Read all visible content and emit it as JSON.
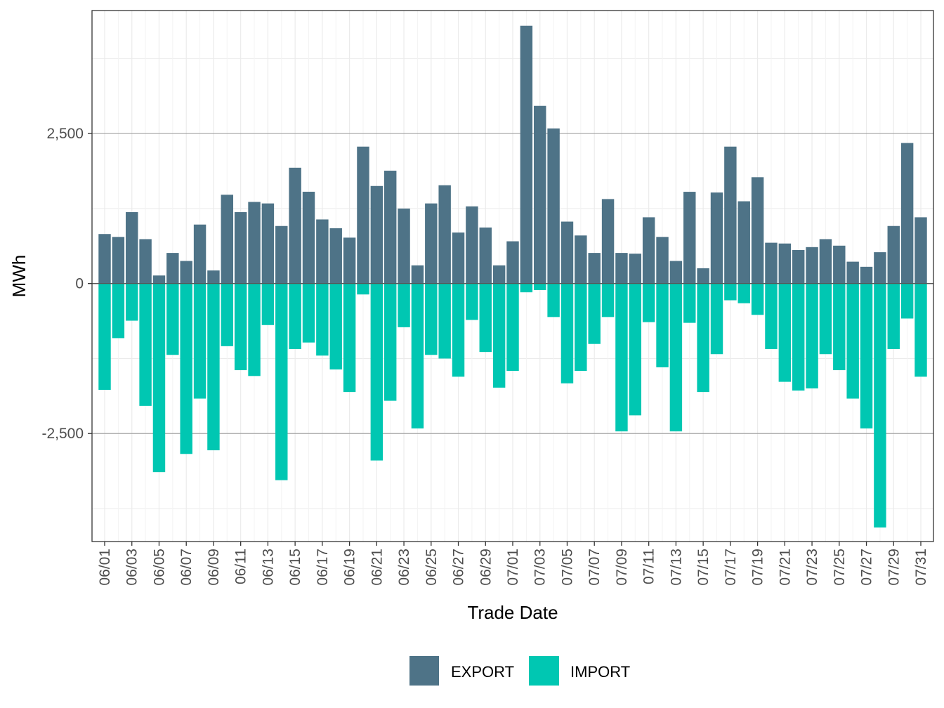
{
  "chart_data": {
    "type": "bar",
    "stacked": "diverging",
    "title": "",
    "xlabel": "Trade Date",
    "ylabel": "MWh",
    "ylim": [
      -4300,
      4550
    ],
    "yticks": [
      -2500,
      0,
      2500
    ],
    "ytick_labels": [
      "-2,500",
      "0",
      "2,500"
    ],
    "grid": true,
    "legend_position": "bottom",
    "categories": [
      "06/01",
      "06/02",
      "06/03",
      "06/04",
      "06/05",
      "06/06",
      "06/07",
      "06/08",
      "06/09",
      "06/10",
      "06/11",
      "06/12",
      "06/13",
      "06/14",
      "06/15",
      "06/16",
      "06/17",
      "06/18",
      "06/19",
      "06/20",
      "06/21",
      "06/22",
      "06/23",
      "06/24",
      "06/25",
      "06/26",
      "06/27",
      "06/28",
      "06/29",
      "06/30",
      "07/01",
      "07/02",
      "07/03",
      "07/04",
      "07/05",
      "07/06",
      "07/07",
      "07/08",
      "07/09",
      "07/10",
      "07/11",
      "07/12",
      "07/13",
      "07/14",
      "07/15",
      "07/16",
      "07/17",
      "07/18",
      "07/19",
      "07/20",
      "07/21",
      "07/22",
      "07/23",
      "07/24",
      "07/25",
      "07/26",
      "07/27",
      "07/28",
      "07/29",
      "07/30",
      "07/31"
    ],
    "xtick_labels": [
      "06/01",
      "06/03",
      "06/05",
      "06/07",
      "06/09",
      "06/11",
      "06/13",
      "06/15",
      "06/17",
      "06/19",
      "06/21",
      "06/23",
      "06/25",
      "06/27",
      "06/29",
      "07/01",
      "07/03",
      "07/05",
      "07/07",
      "07/09",
      "07/11",
      "07/13",
      "07/15",
      "07/17",
      "07/19",
      "07/21",
      "07/23",
      "07/25",
      "07/27",
      "07/29",
      "07/31"
    ],
    "series": [
      {
        "name": "EXPORT",
        "color": "#4e7387",
        "values": [
          825,
          777,
          1190,
          740,
          134,
          510,
          376,
          983,
          218,
          1480,
          1190,
          1360,
          1335,
          959,
          1930,
          1530,
          1068,
          922,
          765,
          2282,
          1626,
          1881,
          1250,
          303,
          1335,
          1638,
          850,
          1286,
          934,
          303,
          704,
          4296,
          2961,
          2585,
          1032,
          801,
          510,
          1408,
          510,
          498,
          1104,
          777,
          376,
          1529,
          255,
          1517,
          2282,
          1371,
          1772,
          680,
          667,
          558,
          607,
          740,
          631,
          364,
          279,
          522,
          959,
          2342,
          1104
        ]
      },
      {
        "name": "IMPORT",
        "color": "#00c7b2",
        "values": [
          -1772,
          -910,
          -619,
          -2039,
          -3143,
          -1189,
          -2840,
          -1918,
          -2779,
          -1044,
          -1444,
          -1541,
          -692,
          -3277,
          -1092,
          -983,
          -1201,
          -1432,
          -1808,
          -182,
          -2949,
          -1954,
          -728,
          -2415,
          -1189,
          -1250,
          -1553,
          -607,
          -1141,
          -1735,
          -1456,
          -146,
          -109,
          -558,
          -1663,
          -1456,
          -1007,
          -558,
          -2464,
          -2197,
          -643,
          -1396,
          -2464,
          -655,
          -1808,
          -1177,
          -279,
          -328,
          -522,
          -1092,
          -1638,
          -1784,
          -1748,
          -1177,
          -1444,
          -1918,
          -2415,
          -4066,
          -1092,
          -583,
          -1553
        ]
      }
    ]
  }
}
